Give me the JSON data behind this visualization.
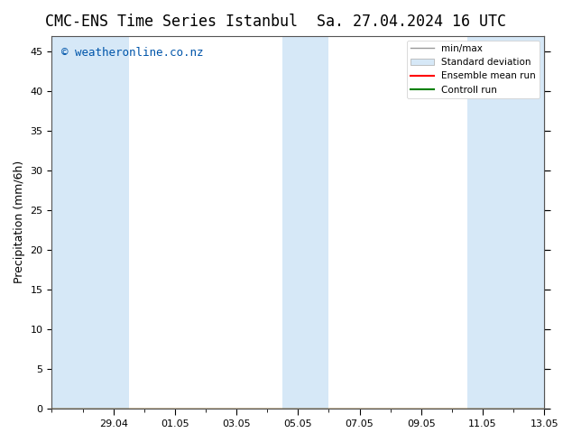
{
  "title_left": "CMC-ENS Time Series Istanbul",
  "title_right": "Sa. 27.04.2024 16 UTC",
  "ylabel": "Precipitation (mm/6h)",
  "ylim": [
    0,
    47
  ],
  "yticks": [
    0,
    5,
    10,
    15,
    20,
    25,
    30,
    35,
    40,
    45
  ],
  "watermark": "© weatheronline.co.nz",
  "watermark_color": "#0055aa",
  "background_color": "#ffffff",
  "plot_bg_color": "#ffffff",
  "band_color": "#d6e8f7",
  "band_color2": "#c5dcf0",
  "x_start": "2024-04-27",
  "x_end": "2024-05-13",
  "xtick_labels": [
    "29.04",
    "01.05",
    "03.05",
    "05.05",
    "07.05",
    "09.05",
    "11.05",
    "13.05"
  ],
  "minmax_bands": [
    {
      "start": "2024-04-27",
      "end": "2024-04-29 12:00"
    },
    {
      "start": "2024-05-04 12:00",
      "end": "2024-05-06"
    },
    {
      "start": "2024-05-10 12:00",
      "end": "2024-05-13"
    }
  ],
  "legend_labels": [
    "min/max",
    "Standard deviation",
    "Ensemble mean run",
    "Controll run"
  ],
  "legend_colors": [
    "#aaaaaa",
    "#c5dcf0",
    "#ff0000",
    "#00aa00"
  ],
  "title_fontsize": 12,
  "axis_fontsize": 9,
  "tick_fontsize": 8
}
